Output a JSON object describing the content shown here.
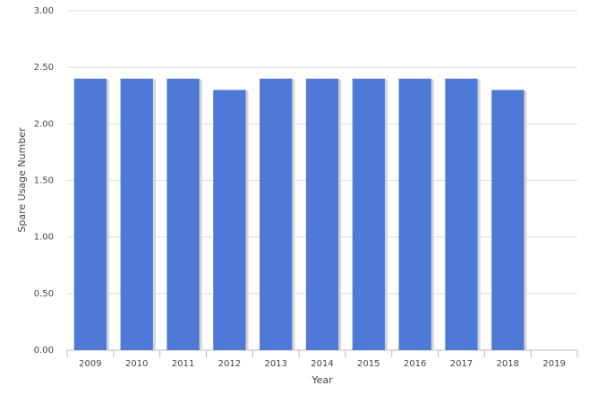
{
  "chart_data": {
    "type": "bar",
    "x_label": "Year",
    "y_label": "Spare Usage Number",
    "categories": [
      "2009",
      "2010",
      "2011",
      "2012",
      "2013",
      "2014",
      "2015",
      "2016",
      "2017",
      "2018",
      "2019"
    ],
    "values": [
      2.4,
      2.4,
      2.4,
      2.3,
      2.4,
      2.4,
      2.4,
      2.4,
      2.4,
      2.3,
      0
    ],
    "color": "#4f79d6",
    "ylim": [
      0,
      3
    ],
    "yticks": [
      {
        "value": 0,
        "label": "0.00"
      },
      {
        "value": 0.5,
        "label": "0.50"
      },
      {
        "value": 1,
        "label": "1.00"
      },
      {
        "value": 1.5,
        "label": "1.50"
      },
      {
        "value": 2,
        "label": "2.00"
      },
      {
        "value": 2.5,
        "label": "2.50"
      },
      {
        "value": 3,
        "label": "3.00"
      }
    ],
    "grid": true
  }
}
